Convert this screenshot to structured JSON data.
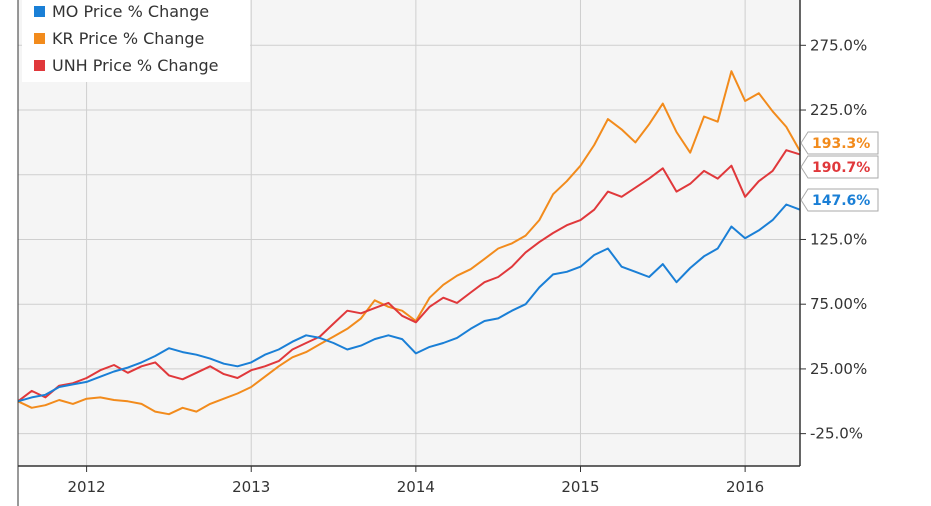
{
  "chart_data": {
    "type": "line",
    "title": "",
    "xlabel": "",
    "ylabel": "",
    "x_range": [
      "2011-08",
      "2016-05"
    ],
    "ylim": [
      -50,
      310
    ],
    "grid": true,
    "legend_position": "top-left",
    "x_ticks": [
      {
        "x": "2012-01",
        "label": "2012"
      },
      {
        "x": "2013-01",
        "label": "2013"
      },
      {
        "x": "2014-01",
        "label": "2014"
      },
      {
        "x": "2015-01",
        "label": "2015"
      },
      {
        "x": "2016-01",
        "label": "2016"
      }
    ],
    "y_ticks": [
      {
        "value": 275,
        "label": "275.0%"
      },
      {
        "value": 225,
        "label": "225.0%"
      },
      {
        "value": 125,
        "label": "125.0%"
      },
      {
        "value": 75,
        "label": "75.00%"
      },
      {
        "value": 25,
        "label": "25.00%"
      },
      {
        "value": -25,
        "label": "-25.0%"
      }
    ],
    "series": [
      {
        "name": "MO Price % Change",
        "color": "#1a7fd6",
        "end_label": "147.6%",
        "points": [
          [
            "2011-08",
            0
          ],
          [
            "2011-09",
            3
          ],
          [
            "2011-10",
            5
          ],
          [
            "2011-11",
            11
          ],
          [
            "2011-12",
            13
          ],
          [
            "2012-01",
            15
          ],
          [
            "2012-02",
            19
          ],
          [
            "2012-03",
            23
          ],
          [
            "2012-04",
            26
          ],
          [
            "2012-05",
            30
          ],
          [
            "2012-06",
            35
          ],
          [
            "2012-07",
            41
          ],
          [
            "2012-08",
            38
          ],
          [
            "2012-09",
            36
          ],
          [
            "2012-10",
            33
          ],
          [
            "2012-11",
            29
          ],
          [
            "2012-12",
            27
          ],
          [
            "2013-01",
            30
          ],
          [
            "2013-02",
            36
          ],
          [
            "2013-03",
            40
          ],
          [
            "2013-04",
            46
          ],
          [
            "2013-05",
            51
          ],
          [
            "2013-06",
            49
          ],
          [
            "2013-07",
            45
          ],
          [
            "2013-08",
            40
          ],
          [
            "2013-09",
            43
          ],
          [
            "2013-10",
            48
          ],
          [
            "2013-11",
            51
          ],
          [
            "2013-12",
            48
          ],
          [
            "2014-01",
            37
          ],
          [
            "2014-02",
            42
          ],
          [
            "2014-03",
            45
          ],
          [
            "2014-04",
            49
          ],
          [
            "2014-05",
            56
          ],
          [
            "2014-06",
            62
          ],
          [
            "2014-07",
            64
          ],
          [
            "2014-08",
            70
          ],
          [
            "2014-09",
            75
          ],
          [
            "2014-10",
            88
          ],
          [
            "2014-11",
            98
          ],
          [
            "2014-12",
            100
          ],
          [
            "2015-01",
            104
          ],
          [
            "2015-02",
            113
          ],
          [
            "2015-03",
            118
          ],
          [
            "2015-04",
            104
          ],
          [
            "2015-05",
            100
          ],
          [
            "2015-06",
            96
          ],
          [
            "2015-07",
            106
          ],
          [
            "2015-08",
            92
          ],
          [
            "2015-09",
            103
          ],
          [
            "2015-10",
            112
          ],
          [
            "2015-11",
            118
          ],
          [
            "2015-12",
            135
          ],
          [
            "2016-01",
            126
          ],
          [
            "2016-02",
            132
          ],
          [
            "2016-03",
            140
          ],
          [
            "2016-04",
            152
          ],
          [
            "2016-05",
            148
          ]
        ]
      },
      {
        "name": "KR Price % Change",
        "color": "#f28b1c",
        "end_label": "193.3%",
        "points": [
          [
            "2011-08",
            0
          ],
          [
            "2011-09",
            -5
          ],
          [
            "2011-10",
            -3
          ],
          [
            "2011-11",
            1
          ],
          [
            "2011-12",
            -2
          ],
          [
            "2012-01",
            2
          ],
          [
            "2012-02",
            3
          ],
          [
            "2012-03",
            1
          ],
          [
            "2012-04",
            0
          ],
          [
            "2012-05",
            -2
          ],
          [
            "2012-06",
            -8
          ],
          [
            "2012-07",
            -10
          ],
          [
            "2012-08",
            -5
          ],
          [
            "2012-09",
            -8
          ],
          [
            "2012-10",
            -2
          ],
          [
            "2012-11",
            2
          ],
          [
            "2012-12",
            6
          ],
          [
            "2013-01",
            11
          ],
          [
            "2013-02",
            19
          ],
          [
            "2013-03",
            27
          ],
          [
            "2013-04",
            34
          ],
          [
            "2013-05",
            38
          ],
          [
            "2013-06",
            44
          ],
          [
            "2013-07",
            50
          ],
          [
            "2013-08",
            56
          ],
          [
            "2013-09",
            64
          ],
          [
            "2013-10",
            78
          ],
          [
            "2013-11",
            73
          ],
          [
            "2013-12",
            70
          ],
          [
            "2014-01",
            62
          ],
          [
            "2014-02",
            80
          ],
          [
            "2014-03",
            90
          ],
          [
            "2014-04",
            97
          ],
          [
            "2014-05",
            102
          ],
          [
            "2014-06",
            110
          ],
          [
            "2014-07",
            118
          ],
          [
            "2014-08",
            122
          ],
          [
            "2014-09",
            128
          ],
          [
            "2014-10",
            140
          ],
          [
            "2014-11",
            160
          ],
          [
            "2014-12",
            170
          ],
          [
            "2015-01",
            182
          ],
          [
            "2015-02",
            198
          ],
          [
            "2015-03",
            218
          ],
          [
            "2015-04",
            210
          ],
          [
            "2015-05",
            200
          ],
          [
            "2015-06",
            214
          ],
          [
            "2015-07",
            230
          ],
          [
            "2015-08",
            208
          ],
          [
            "2015-09",
            192
          ],
          [
            "2015-10",
            220
          ],
          [
            "2015-11",
            216
          ],
          [
            "2015-12",
            255
          ],
          [
            "2016-01",
            232
          ],
          [
            "2016-02",
            238
          ],
          [
            "2016-03",
            224
          ],
          [
            "2016-04",
            212
          ],
          [
            "2016-05",
            193.3
          ]
        ]
      },
      {
        "name": "UNH Price % Change",
        "color": "#e0383b",
        "end_label": "190.7%",
        "points": [
          [
            "2011-08",
            0
          ],
          [
            "2011-09",
            8
          ],
          [
            "2011-10",
            3
          ],
          [
            "2011-11",
            12
          ],
          [
            "2011-12",
            14
          ],
          [
            "2012-01",
            18
          ],
          [
            "2012-02",
            24
          ],
          [
            "2012-03",
            28
          ],
          [
            "2012-04",
            22
          ],
          [
            "2012-05",
            27
          ],
          [
            "2012-06",
            30
          ],
          [
            "2012-07",
            20
          ],
          [
            "2012-08",
            17
          ],
          [
            "2012-09",
            22
          ],
          [
            "2012-10",
            27
          ],
          [
            "2012-11",
            21
          ],
          [
            "2012-12",
            18
          ],
          [
            "2013-01",
            24
          ],
          [
            "2013-02",
            27
          ],
          [
            "2013-03",
            31
          ],
          [
            "2013-04",
            40
          ],
          [
            "2013-05",
            45
          ],
          [
            "2013-06",
            50
          ],
          [
            "2013-07",
            60
          ],
          [
            "2013-08",
            70
          ],
          [
            "2013-09",
            68
          ],
          [
            "2013-10",
            72
          ],
          [
            "2013-11",
            76
          ],
          [
            "2013-12",
            66
          ],
          [
            "2014-01",
            61
          ],
          [
            "2014-02",
            73
          ],
          [
            "2014-03",
            80
          ],
          [
            "2014-04",
            76
          ],
          [
            "2014-05",
            84
          ],
          [
            "2014-06",
            92
          ],
          [
            "2014-07",
            96
          ],
          [
            "2014-08",
            104
          ],
          [
            "2014-09",
            115
          ],
          [
            "2014-10",
            123
          ],
          [
            "2014-11",
            130
          ],
          [
            "2014-12",
            136
          ],
          [
            "2015-01",
            140
          ],
          [
            "2015-02",
            148
          ],
          [
            "2015-03",
            162
          ],
          [
            "2015-04",
            158
          ],
          [
            "2015-05",
            165
          ],
          [
            "2015-06",
            172
          ],
          [
            "2015-07",
            180
          ],
          [
            "2015-08",
            162
          ],
          [
            "2015-09",
            168
          ],
          [
            "2015-10",
            178
          ],
          [
            "2015-11",
            172
          ],
          [
            "2015-12",
            182
          ],
          [
            "2016-01",
            158
          ],
          [
            "2016-02",
            170
          ],
          [
            "2016-03",
            178
          ],
          [
            "2016-04",
            194
          ],
          [
            "2016-05",
            190.7
          ]
        ]
      }
    ]
  }
}
